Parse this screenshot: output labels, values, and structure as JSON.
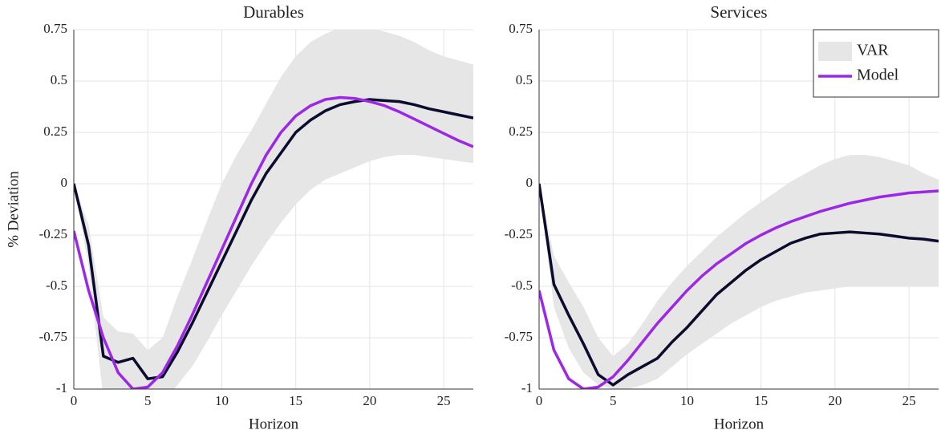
{
  "chart_data": [
    {
      "type": "line",
      "title": "Durables",
      "xlabel": "Horizon",
      "ylabel": "% Deviation",
      "x": [
        0,
        1,
        2,
        3,
        4,
        5,
        6,
        7,
        8,
        9,
        10,
        11,
        12,
        13,
        14,
        15,
        16,
        17,
        18,
        19,
        20,
        21,
        22,
        23,
        24,
        25,
        26,
        27
      ],
      "xlim": [
        0,
        27
      ],
      "xticks": [
        0,
        5,
        10,
        15,
        20,
        25
      ],
      "ylim": [
        -1,
        0.75
      ],
      "yticks": [
        -1,
        -0.75,
        -0.5,
        -0.25,
        0,
        0.25,
        0.5,
        0.75
      ],
      "grid": true,
      "series": [
        {
          "color": "#0b0b2e",
          "band_color": "#e6e6e6",
          "values": [
            0,
            -0.3,
            -0.84,
            -0.87,
            -0.85,
            -0.95,
            -0.94,
            -0.82,
            -0.68,
            -0.53,
            -0.38,
            -0.23,
            -0.08,
            0.05,
            0.15,
            0.25,
            0.31,
            0.355,
            0.385,
            0.4,
            0.41,
            0.405,
            0.4,
            0.385,
            0.365,
            0.35,
            0.335,
            0.32
          ],
          "upper": [
            0,
            -0.2,
            -0.65,
            -0.72,
            -0.73,
            -0.81,
            -0.75,
            -0.55,
            -0.37,
            -0.18,
            0,
            0.14,
            0.26,
            0.39,
            0.52,
            0.62,
            0.69,
            0.73,
            0.76,
            0.77,
            0.76,
            0.74,
            0.72,
            0.69,
            0.65,
            0.62,
            0.6,
            0.58
          ],
          "lower": [
            0,
            -0.4,
            -1.05,
            -1.08,
            -1.08,
            -1.1,
            -1.08,
            -0.98,
            -0.89,
            -0.77,
            -0.64,
            -0.52,
            -0.4,
            -0.29,
            -0.19,
            -0.1,
            -0.03,
            0.02,
            0.05,
            0.08,
            0.11,
            0.13,
            0.14,
            0.14,
            0.13,
            0.12,
            0.11,
            0.1
          ]
        },
        {
          "color": "#9d27e6",
          "values": [
            -0.23,
            -0.52,
            -0.75,
            -0.92,
            -1,
            -0.99,
            -0.92,
            -0.79,
            -0.64,
            -0.48,
            -0.32,
            -0.16,
            0,
            0.14,
            0.25,
            0.33,
            0.38,
            0.41,
            0.42,
            0.415,
            0.4,
            0.38,
            0.35,
            0.315,
            0.28,
            0.245,
            0.21,
            0.18
          ]
        }
      ]
    },
    {
      "type": "line",
      "title": "Services",
      "xlabel": "Horizon",
      "x": [
        0,
        1,
        2,
        3,
        4,
        5,
        6,
        7,
        8,
        9,
        10,
        11,
        12,
        13,
        14,
        15,
        16,
        17,
        18,
        19,
        20,
        21,
        22,
        23,
        24,
        25,
        26,
        27
      ],
      "xlim": [
        0,
        27
      ],
      "xticks": [
        0,
        5,
        10,
        15,
        20,
        25
      ],
      "ylim": [
        -1,
        0.75
      ],
      "yticks": [
        -1,
        -0.75,
        -0.5,
        -0.25,
        0,
        0.25,
        0.5,
        0.75
      ],
      "grid": true,
      "legend": "upper right",
      "series": [
        {
          "name": "VAR",
          "color": "#0b0b2e",
          "band_color": "#e6e6e6",
          "values": [
            0,
            -0.49,
            -0.64,
            -0.78,
            -0.93,
            -0.98,
            -0.93,
            -0.89,
            -0.85,
            -0.77,
            -0.7,
            -0.62,
            -0.54,
            -0.48,
            -0.42,
            -0.37,
            -0.33,
            -0.29,
            -0.265,
            -0.245,
            -0.24,
            -0.235,
            -0.24,
            -0.245,
            -0.255,
            -0.265,
            -0.27,
            -0.28
          ],
          "upper": [
            0,
            -0.35,
            -0.48,
            -0.6,
            -0.75,
            -0.84,
            -0.78,
            -0.68,
            -0.57,
            -0.48,
            -0.4,
            -0.33,
            -0.26,
            -0.2,
            -0.14,
            -0.09,
            -0.04,
            0.01,
            0.05,
            0.09,
            0.12,
            0.14,
            0.14,
            0.13,
            0.11,
            0.09,
            0.05,
            0.02
          ],
          "lower": [
            0,
            -0.6,
            -0.8,
            -0.92,
            -0.98,
            -1,
            -1,
            -0.98,
            -0.95,
            -0.89,
            -0.83,
            -0.78,
            -0.73,
            -0.68,
            -0.64,
            -0.6,
            -0.57,
            -0.55,
            -0.53,
            -0.52,
            -0.51,
            -0.5,
            -0.5,
            -0.5,
            -0.5,
            -0.5,
            -0.5,
            -0.5
          ]
        },
        {
          "name": "Model",
          "color": "#9d27e6",
          "values": [
            -0.52,
            -0.81,
            -0.95,
            -1,
            -0.99,
            -0.94,
            -0.86,
            -0.77,
            -0.68,
            -0.6,
            -0.52,
            -0.45,
            -0.39,
            -0.34,
            -0.29,
            -0.25,
            -0.215,
            -0.185,
            -0.16,
            -0.135,
            -0.115,
            -0.095,
            -0.08,
            -0.065,
            -0.055,
            -0.045,
            -0.04,
            -0.035
          ]
        }
      ]
    }
  ]
}
